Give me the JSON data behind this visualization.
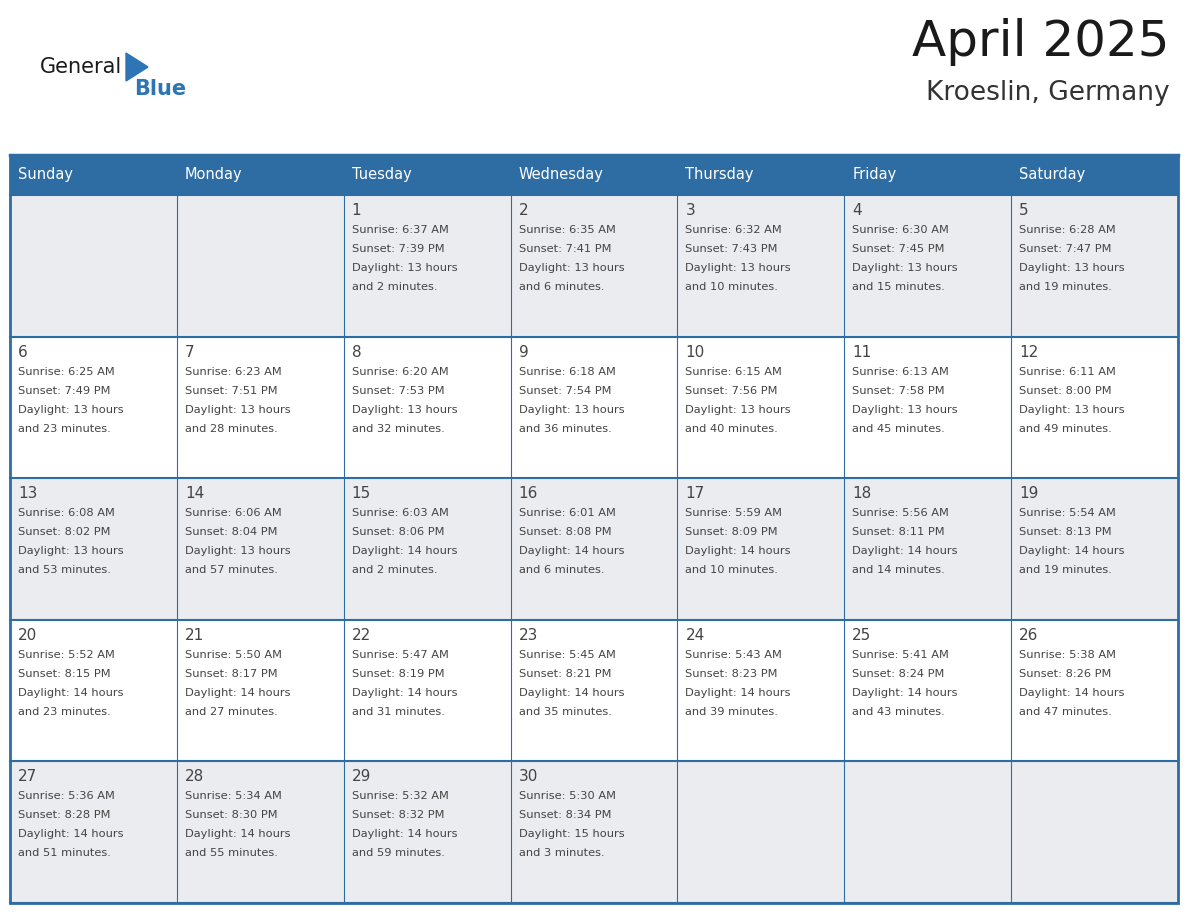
{
  "title": "April 2025",
  "subtitle": "Kroeslin, Germany",
  "header_bg": "#2E6DA4",
  "header_text_color": "#FFFFFF",
  "cell_bg_light": "#EAECF0",
  "cell_bg_white": "#FFFFFF",
  "grid_line_color": "#2E6DA4",
  "text_color": "#444444",
  "days_of_week": [
    "Sunday",
    "Monday",
    "Tuesday",
    "Wednesday",
    "Thursday",
    "Friday",
    "Saturday"
  ],
  "weeks": [
    [
      {
        "day": "",
        "sunrise": "",
        "sunset": "",
        "daylight": ""
      },
      {
        "day": "",
        "sunrise": "",
        "sunset": "",
        "daylight": ""
      },
      {
        "day": "1",
        "sunrise": "Sunrise: 6:37 AM",
        "sunset": "Sunset: 7:39 PM",
        "daylight": "Daylight: 13 hours\nand 2 minutes."
      },
      {
        "day": "2",
        "sunrise": "Sunrise: 6:35 AM",
        "sunset": "Sunset: 7:41 PM",
        "daylight": "Daylight: 13 hours\nand 6 minutes."
      },
      {
        "day": "3",
        "sunrise": "Sunrise: 6:32 AM",
        "sunset": "Sunset: 7:43 PM",
        "daylight": "Daylight: 13 hours\nand 10 minutes."
      },
      {
        "day": "4",
        "sunrise": "Sunrise: 6:30 AM",
        "sunset": "Sunset: 7:45 PM",
        "daylight": "Daylight: 13 hours\nand 15 minutes."
      },
      {
        "day": "5",
        "sunrise": "Sunrise: 6:28 AM",
        "sunset": "Sunset: 7:47 PM",
        "daylight": "Daylight: 13 hours\nand 19 minutes."
      }
    ],
    [
      {
        "day": "6",
        "sunrise": "Sunrise: 6:25 AM",
        "sunset": "Sunset: 7:49 PM",
        "daylight": "Daylight: 13 hours\nand 23 minutes."
      },
      {
        "day": "7",
        "sunrise": "Sunrise: 6:23 AM",
        "sunset": "Sunset: 7:51 PM",
        "daylight": "Daylight: 13 hours\nand 28 minutes."
      },
      {
        "day": "8",
        "sunrise": "Sunrise: 6:20 AM",
        "sunset": "Sunset: 7:53 PM",
        "daylight": "Daylight: 13 hours\nand 32 minutes."
      },
      {
        "day": "9",
        "sunrise": "Sunrise: 6:18 AM",
        "sunset": "Sunset: 7:54 PM",
        "daylight": "Daylight: 13 hours\nand 36 minutes."
      },
      {
        "day": "10",
        "sunrise": "Sunrise: 6:15 AM",
        "sunset": "Sunset: 7:56 PM",
        "daylight": "Daylight: 13 hours\nand 40 minutes."
      },
      {
        "day": "11",
        "sunrise": "Sunrise: 6:13 AM",
        "sunset": "Sunset: 7:58 PM",
        "daylight": "Daylight: 13 hours\nand 45 minutes."
      },
      {
        "day": "12",
        "sunrise": "Sunrise: 6:11 AM",
        "sunset": "Sunset: 8:00 PM",
        "daylight": "Daylight: 13 hours\nand 49 minutes."
      }
    ],
    [
      {
        "day": "13",
        "sunrise": "Sunrise: 6:08 AM",
        "sunset": "Sunset: 8:02 PM",
        "daylight": "Daylight: 13 hours\nand 53 minutes."
      },
      {
        "day": "14",
        "sunrise": "Sunrise: 6:06 AM",
        "sunset": "Sunset: 8:04 PM",
        "daylight": "Daylight: 13 hours\nand 57 minutes."
      },
      {
        "day": "15",
        "sunrise": "Sunrise: 6:03 AM",
        "sunset": "Sunset: 8:06 PM",
        "daylight": "Daylight: 14 hours\nand 2 minutes."
      },
      {
        "day": "16",
        "sunrise": "Sunrise: 6:01 AM",
        "sunset": "Sunset: 8:08 PM",
        "daylight": "Daylight: 14 hours\nand 6 minutes."
      },
      {
        "day": "17",
        "sunrise": "Sunrise: 5:59 AM",
        "sunset": "Sunset: 8:09 PM",
        "daylight": "Daylight: 14 hours\nand 10 minutes."
      },
      {
        "day": "18",
        "sunrise": "Sunrise: 5:56 AM",
        "sunset": "Sunset: 8:11 PM",
        "daylight": "Daylight: 14 hours\nand 14 minutes."
      },
      {
        "day": "19",
        "sunrise": "Sunrise: 5:54 AM",
        "sunset": "Sunset: 8:13 PM",
        "daylight": "Daylight: 14 hours\nand 19 minutes."
      }
    ],
    [
      {
        "day": "20",
        "sunrise": "Sunrise: 5:52 AM",
        "sunset": "Sunset: 8:15 PM",
        "daylight": "Daylight: 14 hours\nand 23 minutes."
      },
      {
        "day": "21",
        "sunrise": "Sunrise: 5:50 AM",
        "sunset": "Sunset: 8:17 PM",
        "daylight": "Daylight: 14 hours\nand 27 minutes."
      },
      {
        "day": "22",
        "sunrise": "Sunrise: 5:47 AM",
        "sunset": "Sunset: 8:19 PM",
        "daylight": "Daylight: 14 hours\nand 31 minutes."
      },
      {
        "day": "23",
        "sunrise": "Sunrise: 5:45 AM",
        "sunset": "Sunset: 8:21 PM",
        "daylight": "Daylight: 14 hours\nand 35 minutes."
      },
      {
        "day": "24",
        "sunrise": "Sunrise: 5:43 AM",
        "sunset": "Sunset: 8:23 PM",
        "daylight": "Daylight: 14 hours\nand 39 minutes."
      },
      {
        "day": "25",
        "sunrise": "Sunrise: 5:41 AM",
        "sunset": "Sunset: 8:24 PM",
        "daylight": "Daylight: 14 hours\nand 43 minutes."
      },
      {
        "day": "26",
        "sunrise": "Sunrise: 5:38 AM",
        "sunset": "Sunset: 8:26 PM",
        "daylight": "Daylight: 14 hours\nand 47 minutes."
      }
    ],
    [
      {
        "day": "27",
        "sunrise": "Sunrise: 5:36 AM",
        "sunset": "Sunset: 8:28 PM",
        "daylight": "Daylight: 14 hours\nand 51 minutes."
      },
      {
        "day": "28",
        "sunrise": "Sunrise: 5:34 AM",
        "sunset": "Sunset: 8:30 PM",
        "daylight": "Daylight: 14 hours\nand 55 minutes."
      },
      {
        "day": "29",
        "sunrise": "Sunrise: 5:32 AM",
        "sunset": "Sunset: 8:32 PM",
        "daylight": "Daylight: 14 hours\nand 59 minutes."
      },
      {
        "day": "30",
        "sunrise": "Sunrise: 5:30 AM",
        "sunset": "Sunset: 8:34 PM",
        "daylight": "Daylight: 15 hours\nand 3 minutes."
      },
      {
        "day": "",
        "sunrise": "",
        "sunset": "",
        "daylight": ""
      },
      {
        "day": "",
        "sunrise": "",
        "sunset": "",
        "daylight": ""
      },
      {
        "day": "",
        "sunrise": "",
        "sunset": "",
        "daylight": ""
      }
    ]
  ]
}
